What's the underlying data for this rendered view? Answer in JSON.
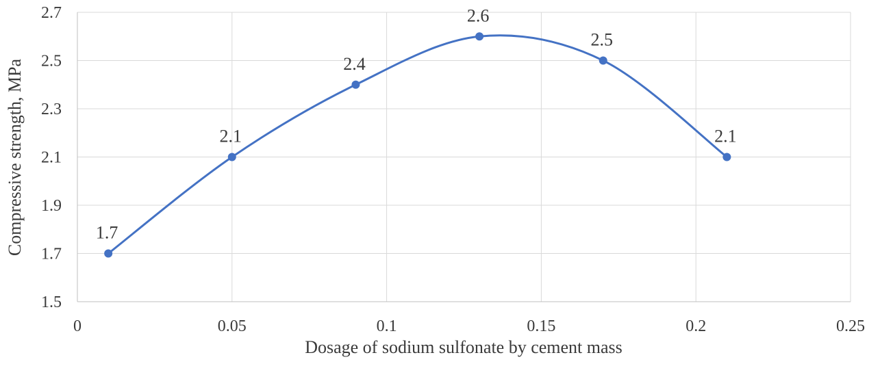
{
  "chart_data": {
    "type": "line",
    "title": "",
    "xlabel": "Dosage of sodium sulfonate by cement mass",
    "ylabel": "Compressive  strength,  MPa",
    "xlim": [
      0,
      0.25
    ],
    "ylim": [
      1.5,
      2.7
    ],
    "x_ticks": [
      0,
      0.05,
      0.1,
      0.15,
      0.2,
      0.25
    ],
    "x_tick_labels": [
      "0",
      "0.05",
      "0.1",
      "0.15",
      "0.2",
      "0.25"
    ],
    "y_ticks": [
      1.5,
      1.7,
      1.9,
      2.1,
      2.3,
      2.5,
      2.7
    ],
    "y_tick_labels": [
      "1.5",
      "1.7",
      "1.9",
      "2.1",
      "2.3",
      "2.5",
      "2.7"
    ],
    "grid": true,
    "smooth": true,
    "legend": "none",
    "series": [
      {
        "color": "#4472c4",
        "x": [
          0.01,
          0.05,
          0.09,
          0.13,
          0.17,
          0.21
        ],
        "values": [
          1.7,
          2.1,
          2.4,
          2.6,
          2.5,
          2.1
        ],
        "data_labels": [
          "1.7",
          "2.1",
          "2.4",
          "2.6",
          "2.5",
          "2.1"
        ]
      }
    ]
  }
}
